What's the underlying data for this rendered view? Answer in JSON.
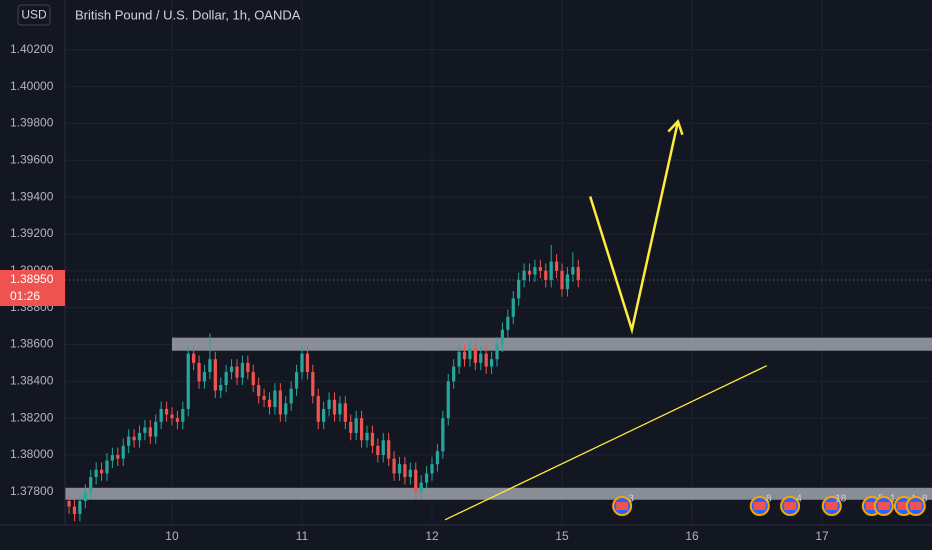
{
  "chart_data": {
    "type": "candlestick",
    "title": "British Pound / U.S. Dollar, 1h, OANDA",
    "currency": "USD",
    "x": [
      -19,
      -18,
      -17,
      -16,
      -15,
      -14,
      -13,
      -12,
      -11,
      -10,
      -9,
      -8,
      -7,
      -6,
      -5,
      -4,
      -3,
      -2,
      -1,
      0,
      1,
      2,
      3,
      4,
      5,
      6,
      7,
      8,
      9,
      10,
      11,
      12,
      13,
      14,
      15,
      16,
      17,
      18,
      19,
      20,
      21,
      22,
      23,
      24,
      25,
      26,
      27,
      28,
      29,
      30,
      31,
      32,
      33,
      34,
      35,
      36,
      37,
      38,
      39,
      40,
      41,
      42,
      43,
      44,
      45,
      46,
      47,
      48,
      49,
      50,
      51,
      52,
      53,
      54,
      55,
      56,
      57,
      58,
      59,
      60,
      61,
      62,
      63,
      64,
      65,
      66,
      67,
      68,
      69,
      70,
      71,
      72,
      73,
      74,
      75
    ],
    "open": [
      1.3775,
      1.3772,
      1.3768,
      1.3775,
      1.378,
      1.3788,
      1.3792,
      1.379,
      1.3797,
      1.38,
      1.3798,
      1.3805,
      1.381,
      1.3808,
      1.3812,
      1.3815,
      1.381,
      1.3818,
      1.3825,
      1.3822,
      1.382,
      1.3818,
      1.3825,
      1.3855,
      1.385,
      1.384,
      1.3845,
      1.3852,
      1.3835,
      1.3838,
      1.3845,
      1.3848,
      1.3842,
      1.385,
      1.3845,
      1.3838,
      1.3832,
      1.383,
      1.3826,
      1.3835,
      1.3822,
      1.3828,
      1.3836,
      1.3845,
      1.3855,
      1.3845,
      1.3832,
      1.3818,
      1.3825,
      1.383,
      1.3822,
      1.3828,
      1.3818,
      1.3812,
      1.382,
      1.3808,
      1.3812,
      1.3805,
      1.38,
      1.3808,
      1.3798,
      1.379,
      1.3795,
      1.3788,
      1.3792,
      1.378,
      1.3785,
      1.379,
      1.3795,
      1.3802,
      1.382,
      1.384,
      1.3848,
      1.3856,
      1.3852,
      1.3858,
      1.385,
      1.3855,
      1.3848,
      1.3852,
      1.386,
      1.3868,
      1.3875,
      1.3885,
      1.3895,
      1.39,
      1.3898,
      1.3902,
      1.39,
      1.3895,
      1.3905,
      1.39,
      1.389,
      1.3898,
      1.3902
    ],
    "high": [
      1.3779,
      1.3776,
      1.3779,
      1.3784,
      1.3792,
      1.3796,
      1.3796,
      1.3801,
      1.3804,
      1.3804,
      1.3809,
      1.3814,
      1.3814,
      1.3816,
      1.3819,
      1.3819,
      1.3822,
      1.3829,
      1.3829,
      1.3826,
      1.3824,
      1.3829,
      1.3859,
      1.3859,
      1.3854,
      1.3849,
      1.3866,
      1.3856,
      1.3842,
      1.3849,
      1.3852,
      1.3852,
      1.3854,
      1.3854,
      1.3849,
      1.3842,
      1.3836,
      1.3834,
      1.3839,
      1.3839,
      1.3832,
      1.384,
      1.3849,
      1.3859,
      1.3859,
      1.3849,
      1.3836,
      1.3829,
      1.3834,
      1.3834,
      1.3832,
      1.3832,
      1.3822,
      1.3824,
      1.3824,
      1.3816,
      1.3816,
      1.3809,
      1.3812,
      1.3812,
      1.3802,
      1.3799,
      1.3799,
      1.3796,
      1.3796,
      1.3789,
      1.3794,
      1.3799,
      1.3806,
      1.3824,
      1.3844,
      1.3852,
      1.386,
      1.386,
      1.3862,
      1.3862,
      1.3859,
      1.3859,
      1.3856,
      1.3864,
      1.3872,
      1.3879,
      1.3889,
      1.3899,
      1.3904,
      1.3904,
      1.3906,
      1.3906,
      1.3904,
      1.3914,
      1.3909,
      1.3904,
      1.3902,
      1.391,
      1.3906
    ],
    "low": [
      1.3768,
      1.3764,
      1.3764,
      1.3771,
      1.3776,
      1.3784,
      1.3786,
      1.3786,
      1.3793,
      1.3794,
      1.3794,
      1.3801,
      1.3804,
      1.3804,
      1.3808,
      1.3806,
      1.3806,
      1.3814,
      1.3818,
      1.3816,
      1.3814,
      1.3814,
      1.3821,
      1.3846,
      1.3836,
      1.3836,
      1.3841,
      1.3831,
      1.3831,
      1.3834,
      1.3841,
      1.3838,
      1.3838,
      1.3841,
      1.3834,
      1.3828,
      1.3826,
      1.3822,
      1.3822,
      1.3818,
      1.3818,
      1.3824,
      1.3832,
      1.3841,
      1.3841,
      1.3828,
      1.3814,
      1.3814,
      1.3821,
      1.3818,
      1.3818,
      1.3814,
      1.3808,
      1.3808,
      1.3804,
      1.3804,
      1.3801,
      1.3796,
      1.3796,
      1.3794,
      1.3786,
      1.3786,
      1.3784,
      1.3784,
      1.3776,
      1.3776,
      1.3781,
      1.3786,
      1.3791,
      1.3798,
      1.3816,
      1.3836,
      1.3844,
      1.3848,
      1.3848,
      1.3846,
      1.3846,
      1.3844,
      1.3844,
      1.3848,
      1.3856,
      1.3864,
      1.3871,
      1.3881,
      1.3891,
      1.3894,
      1.3894,
      1.3896,
      1.3891,
      1.3891,
      1.3896,
      1.3886,
      1.3886,
      1.3894,
      1.3891
    ],
    "close": [
      1.3772,
      1.3768,
      1.3775,
      1.378,
      1.3788,
      1.3792,
      1.379,
      1.3797,
      1.38,
      1.3798,
      1.3805,
      1.381,
      1.3808,
      1.3812,
      1.3815,
      1.381,
      1.3818,
      1.3825,
      1.3822,
      1.382,
      1.3818,
      1.3825,
      1.3855,
      1.385,
      1.384,
      1.3845,
      1.3852,
      1.3835,
      1.3838,
      1.3845,
      1.3848,
      1.3842,
      1.385,
      1.3845,
      1.3838,
      1.3832,
      1.383,
      1.3826,
      1.3835,
      1.3822,
      1.3828,
      1.3836,
      1.3845,
      1.3855,
      1.3845,
      1.3832,
      1.3818,
      1.3825,
      1.383,
      1.3822,
      1.3828,
      1.3818,
      1.3812,
      1.382,
      1.3808,
      1.3812,
      1.3805,
      1.38,
      1.3808,
      1.3798,
      1.379,
      1.3795,
      1.3788,
      1.3792,
      1.378,
      1.3785,
      1.379,
      1.3795,
      1.3802,
      1.382,
      1.384,
      1.3848,
      1.3856,
      1.3852,
      1.3858,
      1.385,
      1.3855,
      1.3848,
      1.3852,
      1.386,
      1.3868,
      1.3875,
      1.3885,
      1.3895,
      1.39,
      1.3898,
      1.3902,
      1.39,
      1.3895,
      1.3905,
      1.39,
      1.389,
      1.3898,
      1.3902,
      1.3895
    ],
    "up_color": "#26a69a",
    "down_color": "#ef5350",
    "xlim": [
      -19.75,
      140.3
    ],
    "xticks": [
      {
        "value": 0,
        "label": "10"
      },
      {
        "value": 24,
        "label": "11"
      },
      {
        "value": 48,
        "label": "12"
      },
      {
        "value": 72,
        "label": "15"
      },
      {
        "value": 96,
        "label": "16"
      },
      {
        "value": 120,
        "label": "17"
      }
    ],
    "ylim": [
      1.3762,
      1.4047
    ],
    "yticks": [
      {
        "value": 1.378,
        "label": "1.37800"
      },
      {
        "value": 1.38,
        "label": "1.38000"
      },
      {
        "value": 1.382,
        "label": "1.38200"
      },
      {
        "value": 1.384,
        "label": "1.38400"
      },
      {
        "value": 1.386,
        "label": "1.38600"
      },
      {
        "value": 1.388,
        "label": "1.38800"
      },
      {
        "value": 1.39,
        "label": "1.39000"
      },
      {
        "value": 1.392,
        "label": "1.39200"
      },
      {
        "value": 1.394,
        "label": "1.39400"
      },
      {
        "value": 1.396,
        "label": "1.39600"
      },
      {
        "value": 1.398,
        "label": "1.39800"
      },
      {
        "value": 1.4,
        "label": "1.40000"
      },
      {
        "value": 1.402,
        "label": "1.40200"
      }
    ],
    "grid": true,
    "last_price": {
      "value": 1.3895,
      "label": "1.38950"
    },
    "countdown": "01:26",
    "zones": [
      {
        "x": 0,
        "top": 1.38637,
        "bottom": 1.38566
      },
      {
        "x": -19.75,
        "top": 1.37822,
        "bottom": 1.37757
      }
    ],
    "arrow": {
      "x": [
        77.2,
        84.9,
        93.4
      ],
      "y": [
        1.39403,
        1.3868,
        1.39811
      ],
      "color": "#ffeb3b"
    },
    "trendline": {
      "x": [
        50.4,
        109.8
      ],
      "y": [
        1.37648,
        1.38485
      ],
      "color": "#ffeb3b"
    },
    "events": [
      {
        "x": 83.1,
        "label": "3"
      },
      {
        "x": 108.5,
        "label": "8"
      },
      {
        "x": 114.1,
        "label": "4"
      },
      {
        "x": 121.8,
        "label": "18"
      },
      {
        "x": 129.2,
        "label": "5"
      },
      {
        "x": 131.4,
        "label": "1"
      },
      {
        "x": 135.1,
        "label": "4"
      },
      {
        "x": 137.3,
        "label": "8"
      }
    ]
  }
}
